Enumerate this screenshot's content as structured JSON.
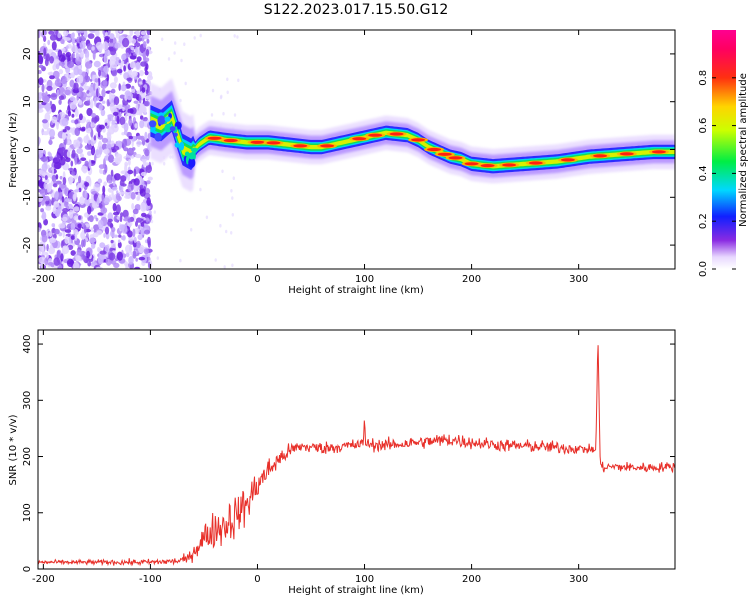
{
  "title": "S122.2023.017.15.50.G12",
  "colors": {
    "snr_line": "#e8302a",
    "axis": "#000000",
    "background": "#ffffff"
  },
  "chart_data": [
    {
      "type": "heatmap",
      "title": "S122.2023.017.15.50.G12",
      "xlabel": "Height of straight line (km)",
      "ylabel": "Frequency (Hz)",
      "xlim": [
        -205,
        390
      ],
      "ylim": [
        -25,
        25
      ],
      "xticks": [
        -200,
        -100,
        0,
        100,
        200,
        300
      ],
      "yticks": [
        -20,
        -10,
        0,
        10,
        20
      ],
      "colorbar": {
        "label": "Normalized spectral amplitude",
        "range": [
          0,
          1
        ],
        "ticks": [
          0.0,
          0.2,
          0.4,
          0.6,
          0.8
        ],
        "colormap": "rainbow (purple → blue → cyan → green → yellow → red → magenta)",
        "placement": "right"
      },
      "noise_region_x": [
        -205,
        -100
      ],
      "ridge": {
        "x": [
          -100,
          -90,
          -80,
          -70,
          -62,
          -55,
          -45,
          -30,
          -10,
          10,
          30,
          50,
          60,
          80,
          100,
          120,
          140,
          150,
          160,
          170,
          180,
          190,
          200,
          220,
          250,
          280,
          310,
          340,
          370,
          390
        ],
        "frequency": [
          6,
          5,
          7,
          0,
          -1,
          1,
          2.5,
          2,
          1.5,
          1.5,
          1,
          0.5,
          0.5,
          1.5,
          2.5,
          3.5,
          3,
          2,
          0.5,
          -0.5,
          -1.5,
          -2,
          -3,
          -3.5,
          -3,
          -2.5,
          -1.5,
          -1,
          -0.5,
          -0.5
        ]
      },
      "grid": false
    },
    {
      "type": "line",
      "xlabel": "Height of straight line (km)",
      "ylabel": "SNR (10 * v/v)",
      "xlim": [
        -205,
        390
      ],
      "ylim": [
        0,
        425
      ],
      "xticks": [
        -200,
        -100,
        0,
        100,
        200,
        300
      ],
      "yticks": [
        0,
        100,
        200,
        300,
        400
      ],
      "series": [
        {
          "color": "#e8302a",
          "x": [
            -205,
            -150,
            -100,
            -75,
            -65,
            -60,
            -50,
            -40,
            -30,
            -20,
            -10,
            0,
            10,
            20,
            30,
            40,
            60,
            80,
            99,
            100,
            101,
            120,
            150,
            180,
            200,
            230,
            260,
            290,
            316,
            317,
            318,
            320,
            321,
            330,
            360,
            390
          ],
          "y": [
            12,
            12,
            12,
            14,
            18,
            30,
            55,
            70,
            80,
            95,
            115,
            150,
            175,
            195,
            210,
            218,
            215,
            218,
            222,
            275,
            222,
            220,
            225,
            230,
            225,
            220,
            218,
            215,
            212,
            300,
            420,
            200,
            180,
            182,
            180,
            182
          ],
          "noise_amplitude": [
            3,
            4,
            5,
            6,
            8,
            12,
            25,
            30,
            35,
            35,
            30,
            25,
            20,
            15,
            12,
            10,
            10,
            10,
            10,
            0,
            10,
            10,
            10,
            12,
            10,
            10,
            10,
            10,
            6,
            0,
            0,
            0,
            8,
            8,
            8,
            8
          ]
        }
      ],
      "grid": false
    }
  ]
}
